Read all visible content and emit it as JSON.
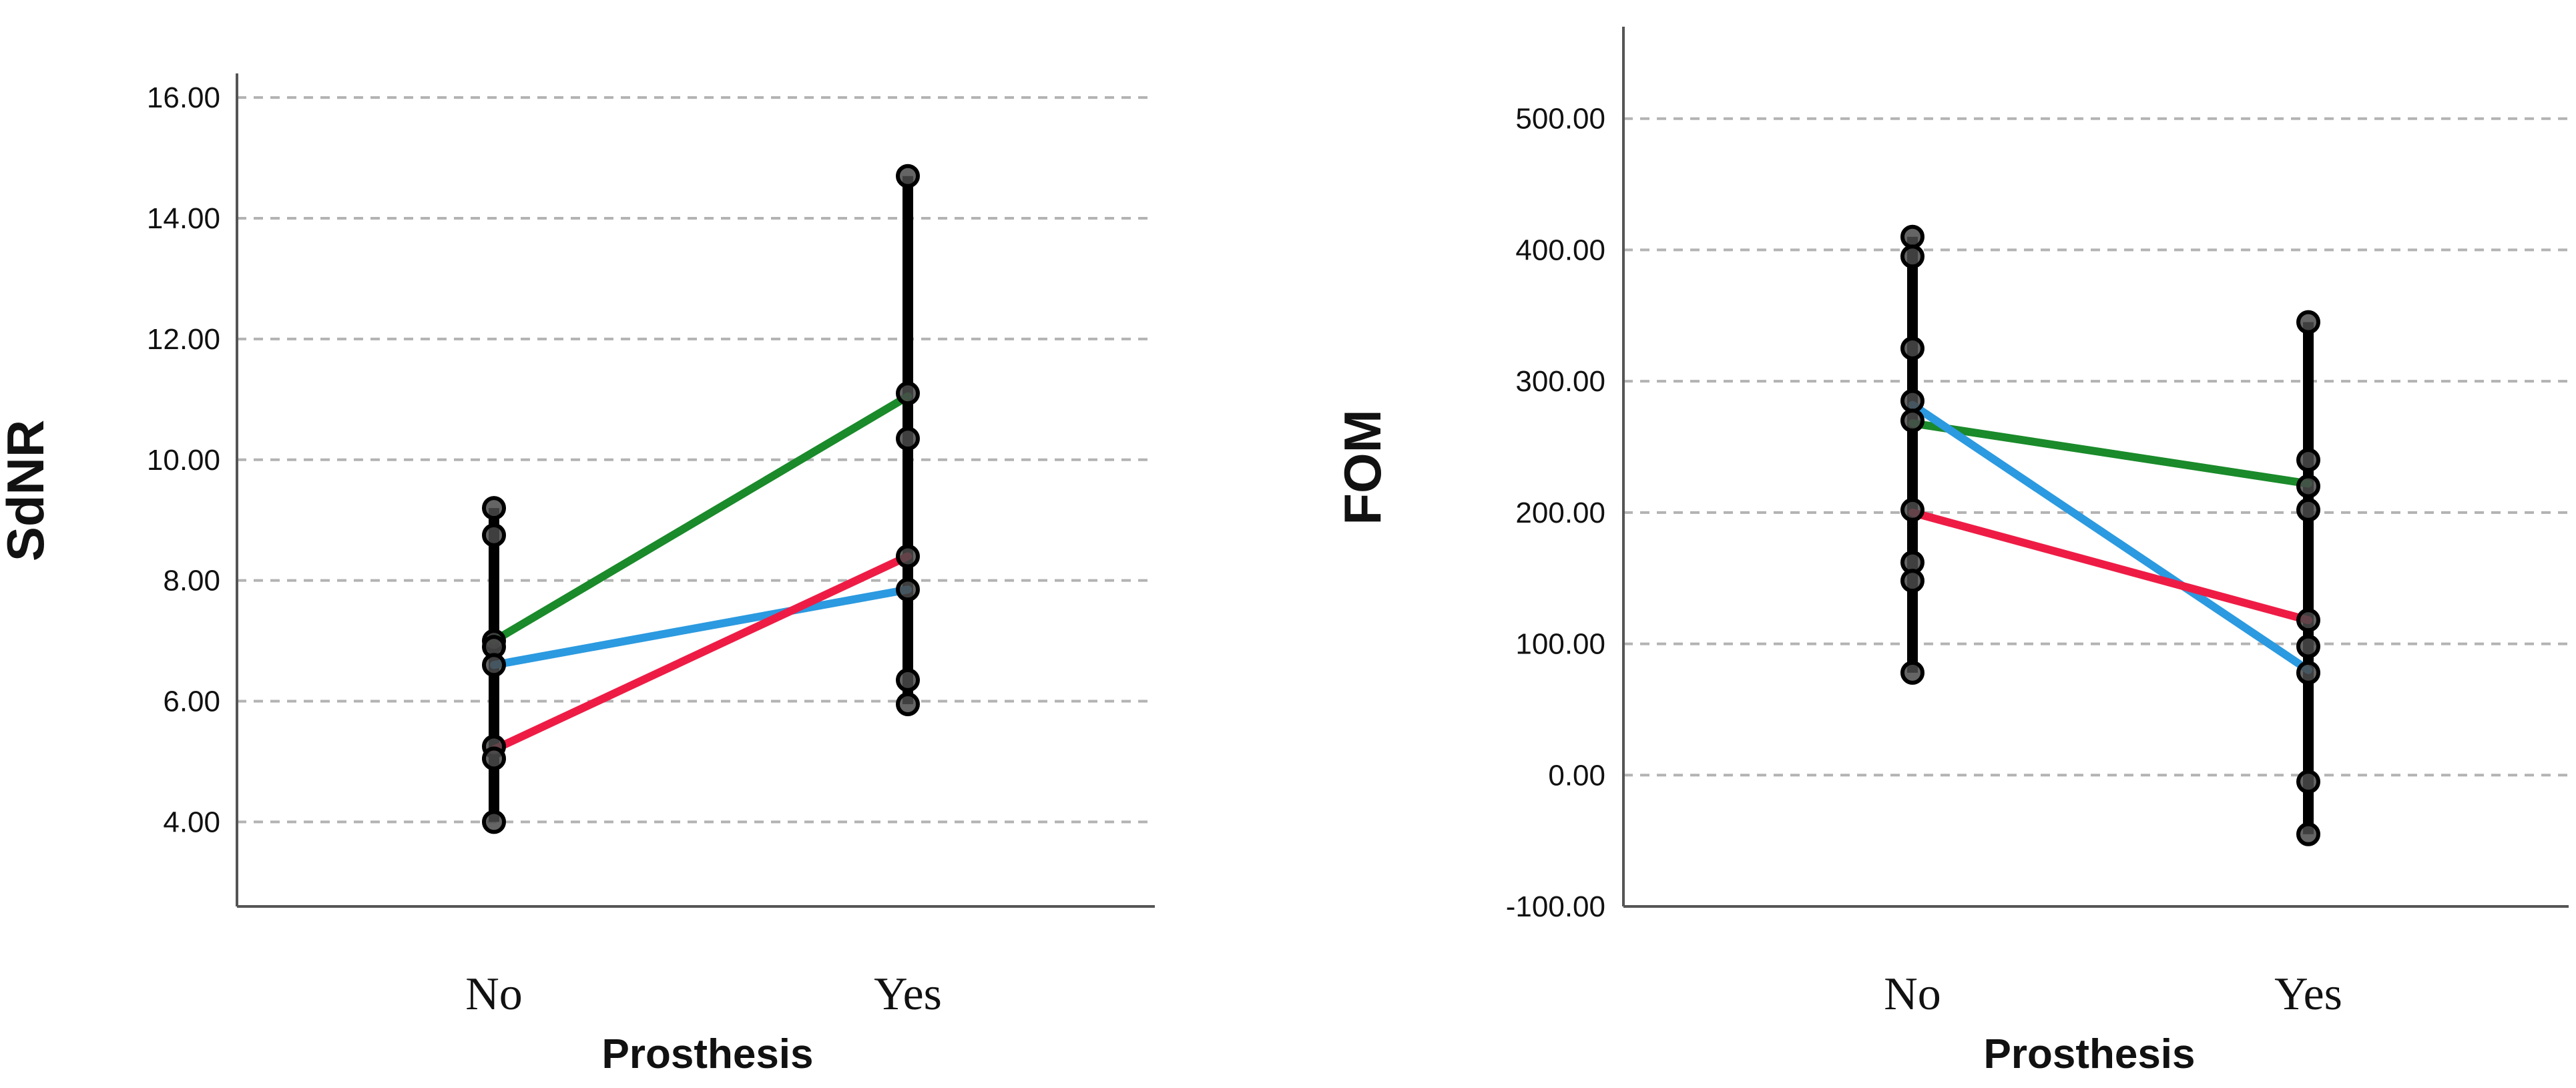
{
  "chart_data": [
    {
      "type": "line",
      "ylabel": "SdNR",
      "xlabel": "Prosthesis",
      "categories": [
        "No",
        "Yes"
      ],
      "ylim": [
        2.6,
        16.4
      ],
      "yticks": [
        "4.00",
        "6.00",
        "8.00",
        "10.00",
        "12.00",
        "14.00",
        "16.00"
      ],
      "ytick_values": [
        4,
        6,
        8,
        10,
        12,
        14,
        16
      ],
      "grid": true,
      "individual_points": {
        "No": [
          9.2,
          8.75,
          7.0,
          6.9,
          6.6,
          5.25,
          5.05,
          4.0
        ],
        "Yes": [
          14.7,
          11.1,
          10.35,
          8.4,
          7.85,
          6.35,
          5.95
        ]
      },
      "series": [
        {
          "color": "#1a8a2a",
          "values": [
            7.0,
            11.05
          ]
        },
        {
          "color": "#2b9ae0",
          "values": [
            6.6,
            7.85
          ]
        },
        {
          "color": "#ee1c45",
          "values": [
            5.2,
            8.4
          ]
        }
      ]
    },
    {
      "type": "line",
      "ylabel": "FOM",
      "xlabel": "Prosthesis",
      "categories": [
        "No",
        "Yes"
      ],
      "ylim": [
        -100,
        570
      ],
      "yticks": [
        "-100.00",
        "0.00",
        "100.00",
        "200.00",
        "300.00",
        "400.00",
        "500.00"
      ],
      "ytick_values": [
        -100,
        0,
        100,
        200,
        300,
        400,
        500
      ],
      "grid": true,
      "individual_points": {
        "No": [
          410,
          395,
          325,
          285,
          270,
          202,
          162,
          148,
          78
        ],
        "Yes": [
          345,
          240,
          220,
          202,
          118,
          98,
          78,
          -5,
          -45
        ]
      },
      "series": [
        {
          "color": "#1a8a2a",
          "values": [
            268,
            222
          ]
        },
        {
          "color": "#2b9ae0",
          "values": [
            282,
            80
          ]
        },
        {
          "color": "#ee1c45",
          "values": [
            200,
            118
          ]
        }
      ]
    }
  ]
}
